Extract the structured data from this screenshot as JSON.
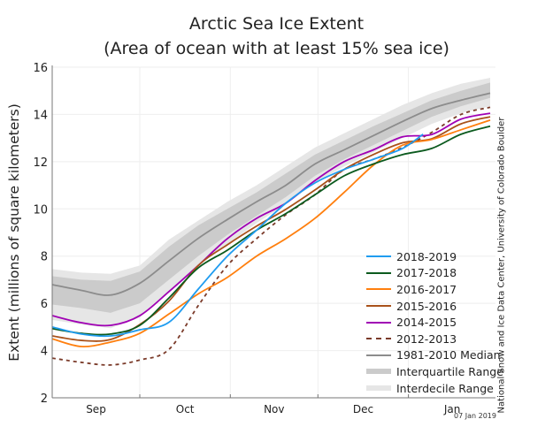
{
  "chart_data": {
    "type": "line",
    "title": "Arctic Sea Ice Extent",
    "subtitle": "(Area of ocean with at least 15% sea ice)",
    "xlabel": "",
    "ylabel": "Extent (millions of square kilometers)",
    "ylim": [
      2,
      16
    ],
    "yticks": [
      "2",
      "4",
      "6",
      "8",
      "10",
      "12",
      "14",
      "16"
    ],
    "ytick_values": [
      2,
      4,
      6,
      8,
      10,
      12,
      14,
      16
    ],
    "xlim_days_since_sep1": [
      0,
      152
    ],
    "month_boundaries_days": [
      30,
      61,
      91,
      122
    ],
    "xtick_labels": [
      {
        "label": "Sep",
        "day": 15
      },
      {
        "label": "Oct",
        "day": 45.5
      },
      {
        "label": "Nov",
        "day": 76
      },
      {
        "label": "Dec",
        "day": 106.5
      },
      {
        "label": "Jan",
        "day": 137
      }
    ],
    "grid": true,
    "legend_position": "bottom-right",
    "x_days": [
      0,
      10,
      20,
      30,
      40,
      50,
      60,
      70,
      80,
      90,
      100,
      110,
      120,
      130,
      140,
      150
    ],
    "bands": [
      {
        "name": "Interdecile Range",
        "color": "#e6e6e6",
        "low": [
          5.3,
          5.1,
          4.95,
          5.4,
          6.5,
          7.6,
          8.5,
          9.4,
          10.2,
          11.1,
          11.8,
          12.4,
          13.0,
          13.6,
          14.05,
          14.35
        ],
        "high": [
          7.45,
          7.3,
          7.25,
          7.6,
          8.7,
          9.5,
          10.3,
          11.0,
          11.8,
          12.6,
          13.2,
          13.8,
          14.4,
          14.9,
          15.3,
          15.55
        ]
      },
      {
        "name": "Interquartile Range",
        "color": "#cbcbcb",
        "low": [
          5.95,
          5.8,
          5.6,
          6.0,
          7.0,
          8.0,
          8.9,
          9.7,
          10.5,
          11.4,
          12.1,
          12.7,
          13.3,
          13.9,
          14.35,
          14.7
        ],
        "high": [
          7.15,
          7.0,
          6.95,
          7.35,
          8.4,
          9.3,
          10.0,
          10.7,
          11.5,
          12.3,
          12.9,
          13.5,
          14.05,
          14.6,
          15.0,
          15.35
        ]
      }
    ],
    "series": [
      {
        "name": "1981-2010 Median",
        "color": "#8c8c8c",
        "dash": false,
        "values": [
          6.79,
          6.55,
          6.35,
          6.85,
          7.8,
          8.75,
          9.55,
          10.3,
          11.0,
          11.9,
          12.5,
          13.1,
          13.7,
          14.25,
          14.6,
          14.9
        ]
      },
      {
        "name": "2012-2013",
        "color": "#7b3b2a",
        "dash": true,
        "values": [
          3.68,
          3.5,
          3.39,
          3.6,
          4.05,
          5.9,
          7.6,
          8.74,
          9.75,
          10.6,
          11.67,
          12.1,
          12.6,
          13.24,
          14.0,
          14.3
        ]
      },
      {
        "name": "2014-2015",
        "color": "#a000b4",
        "dash": false,
        "values": [
          5.48,
          5.18,
          5.07,
          5.48,
          6.5,
          7.6,
          8.74,
          9.6,
          10.24,
          11.2,
          12.0,
          12.5,
          13.05,
          13.15,
          13.8,
          14.05
        ]
      },
      {
        "name": "2015-2016",
        "color": "#a9521b",
        "dash": false,
        "values": [
          4.62,
          4.43,
          4.47,
          5.1,
          6.1,
          7.6,
          8.48,
          9.27,
          9.98,
          10.8,
          11.67,
          12.3,
          12.8,
          12.97,
          13.6,
          13.9
        ]
      },
      {
        "name": "2016-2017",
        "color": "#ff7f0e",
        "dash": false,
        "values": [
          4.5,
          4.17,
          4.36,
          4.73,
          5.55,
          6.4,
          7.1,
          8.0,
          8.74,
          9.6,
          10.7,
          11.85,
          12.7,
          12.94,
          13.35,
          13.76
        ]
      },
      {
        "name": "2017-2018",
        "color": "#0b5a1e",
        "dash": false,
        "values": [
          4.93,
          4.73,
          4.7,
          5.07,
          6.23,
          7.5,
          8.25,
          9.1,
          9.8,
          10.6,
          11.4,
          11.9,
          12.3,
          12.56,
          13.16,
          13.5
        ]
      },
      {
        "name": "2018-2019",
        "color": "#1f9cf0",
        "dash": false,
        "x_days": [
          0,
          10,
          20,
          30,
          40,
          50,
          60,
          70,
          80,
          90,
          100,
          110,
          120,
          127
        ],
        "values": [
          5.0,
          4.7,
          4.62,
          4.88,
          5.2,
          6.6,
          8.0,
          9.1,
          10.24,
          11.1,
          11.67,
          12.1,
          12.56,
          13.16
        ]
      }
    ],
    "legend_order": [
      "2018-2019",
      "2017-2018",
      "2016-2017",
      "2015-2016",
      "2014-2015",
      "2012-2013",
      "1981-2010 Median",
      "Interquartile Range",
      "Interdecile Range"
    ]
  },
  "labels": {
    "title": "Arctic Sea Ice Extent",
    "subtitle": "(Area of ocean with at least 15% sea ice)",
    "ylabel": "Extent (millions of square kilometers)",
    "source": "National Snow and Ice Data Center, University of Colorado Boulder",
    "date": "07 Jan 2019"
  },
  "legend": [
    {
      "label": "2018-2019",
      "color": "#1f9cf0",
      "style": "solid"
    },
    {
      "label": "2017-2018",
      "color": "#0b5a1e",
      "style": "solid"
    },
    {
      "label": "2016-2017",
      "color": "#ff7f0e",
      "style": "solid"
    },
    {
      "label": "2015-2016",
      "color": "#a9521b",
      "style": "solid"
    },
    {
      "label": "2014-2015",
      "color": "#a000b4",
      "style": "solid"
    },
    {
      "label": "2012-2013",
      "color": "#7b3b2a",
      "style": "dashed"
    },
    {
      "label": "1981-2010 Median",
      "color": "#8c8c8c",
      "style": "solid"
    },
    {
      "label": "Interquartile Range",
      "color": "#cbcbcb",
      "style": "band"
    },
    {
      "label": "Interdecile Range",
      "color": "#e6e6e6",
      "style": "band"
    }
  ]
}
